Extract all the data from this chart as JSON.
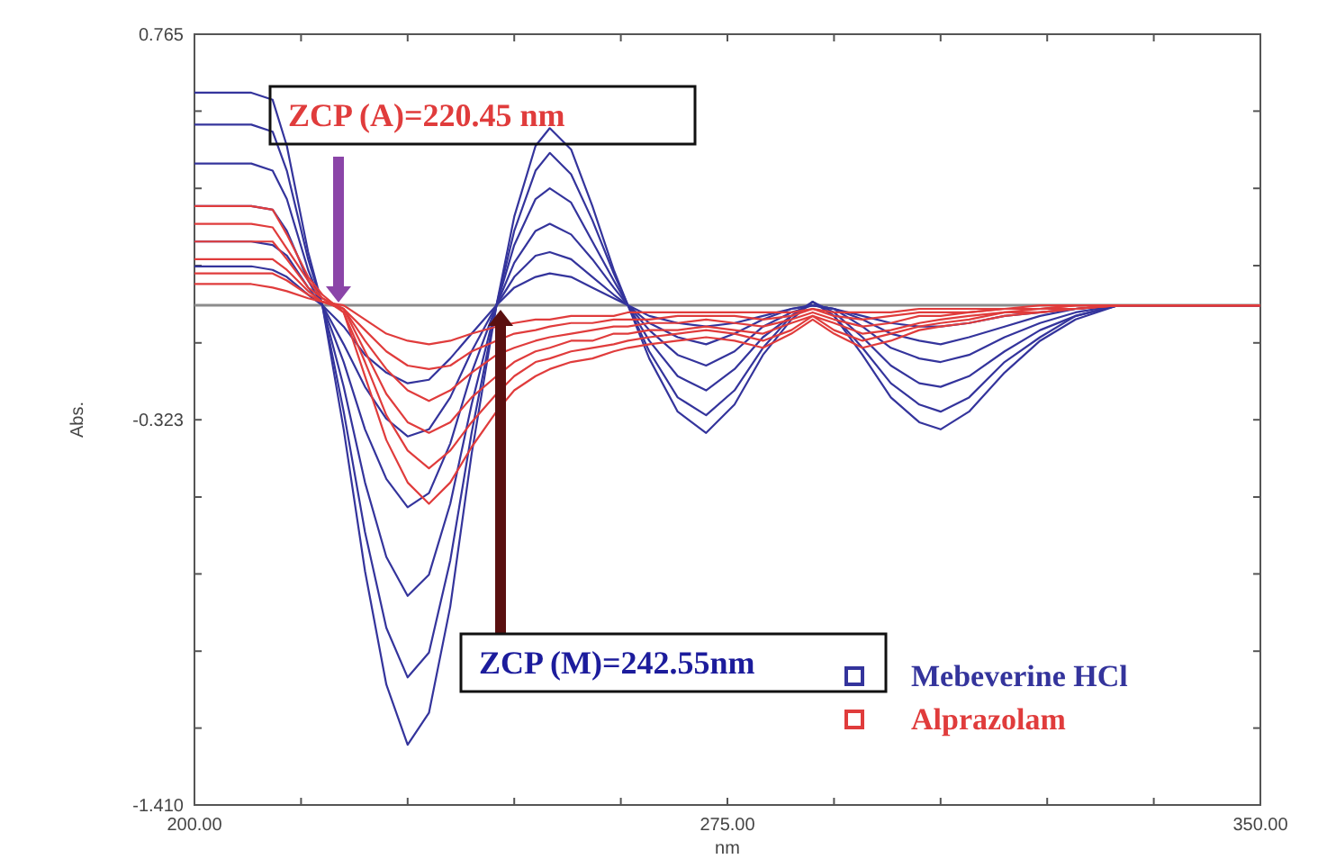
{
  "chart_data": {
    "type": "line",
    "xlabel": "nm",
    "ylabel": "Abs.",
    "x": [
      200,
      208,
      211,
      213,
      216,
      218,
      221,
      224,
      227,
      230,
      233,
      236,
      239,
      242.5,
      245,
      248,
      250,
      253,
      256,
      259,
      261,
      264,
      268,
      272,
      276,
      280,
      284,
      287,
      290,
      294,
      298,
      302,
      305,
      309,
      314,
      319,
      324,
      330,
      350
    ],
    "xlim": [
      200,
      350
    ],
    "xticks": [
      {
        "value": 200,
        "label": "200.00"
      },
      {
        "value": 215,
        "label": null
      },
      {
        "value": 230,
        "label": null
      },
      {
        "value": 245,
        "label": null
      },
      {
        "value": 260,
        "label": null
      },
      {
        "value": 275,
        "label": "275.00"
      },
      {
        "value": 290,
        "label": null
      },
      {
        "value": 305,
        "label": null
      },
      {
        "value": 320,
        "label": null
      },
      {
        "value": 335,
        "label": null
      },
      {
        "value": 350,
        "label": "350.00"
      }
    ],
    "ylim": [
      -1.41,
      0.765
    ],
    "yticks": [
      {
        "value": 0.765,
        "label": "0.765"
      },
      {
        "value": 0.548,
        "label": null
      },
      {
        "value": 0.33,
        "label": null
      },
      {
        "value": 0.112,
        "label": null
      },
      {
        "value": -0.106,
        "label": null
      },
      {
        "value": -0.323,
        "label": "-0.323"
      },
      {
        "value": -0.541,
        "label": null
      },
      {
        "value": -0.758,
        "label": null
      },
      {
        "value": -0.976,
        "label": null
      },
      {
        "value": -1.193,
        "label": null
      },
      {
        "value": -1.41,
        "label": "-1.410"
      }
    ],
    "marker": "none",
    "grid": false,
    "legend": "bottom right",
    "ref_lines": [
      {
        "axis": "y",
        "value": 0,
        "color": "#8c8c8c"
      }
    ],
    "annotations": [
      "ZCP (A)=220.45 nm",
      "ZCP (M)=242.55nm"
    ],
    "series": [
      {
        "name": "Mebeverine HCl",
        "color": "#34349c",
        "values": [
          0.6,
          0.6,
          0.58,
          0.45,
          0.15,
          0,
          -0.35,
          -0.75,
          -1.07,
          -1.24,
          -1.15,
          -0.85,
          -0.42,
          0,
          0.25,
          0.45,
          0.5,
          0.44,
          0.28,
          0.1,
          0,
          -0.15,
          -0.3,
          -0.36,
          -0.28,
          -0.14,
          -0.04,
          0.01,
          -0.03,
          -0.14,
          -0.26,
          -0.33,
          -0.35,
          -0.3,
          -0.19,
          -0.1,
          -0.04,
          0,
          0
        ]
      },
      {
        "color": "#34349c",
        "values": [
          0.51,
          0.51,
          0.49,
          0.38,
          0.13,
          0,
          -0.3,
          -0.64,
          -0.91,
          -1.05,
          -0.98,
          -0.72,
          -0.36,
          0,
          0.21,
          0.38,
          0.43,
          0.37,
          0.24,
          0.09,
          0,
          -0.13,
          -0.26,
          -0.31,
          -0.24,
          -0.12,
          -0.03,
          0.01,
          -0.03,
          -0.12,
          -0.22,
          -0.28,
          -0.3,
          -0.26,
          -0.16,
          -0.09,
          -0.03,
          0,
          0
        ]
      },
      {
        "color": "#34349c",
        "values": [
          0.4,
          0.4,
          0.38,
          0.3,
          0.1,
          0,
          -0.23,
          -0.5,
          -0.71,
          -0.82,
          -0.76,
          -0.56,
          -0.28,
          0,
          0.17,
          0.3,
          0.33,
          0.29,
          0.18,
          0.07,
          0,
          -0.1,
          -0.2,
          -0.24,
          -0.18,
          -0.09,
          -0.03,
          0.01,
          -0.02,
          -0.09,
          -0.17,
          -0.22,
          -0.23,
          -0.2,
          -0.13,
          -0.07,
          -0.03,
          0,
          0
        ]
      },
      {
        "color": "#34349c",
        "values": [
          0.28,
          0.28,
          0.27,
          0.21,
          0.07,
          0,
          -0.16,
          -0.35,
          -0.49,
          -0.57,
          -0.53,
          -0.39,
          -0.19,
          0,
          0.12,
          0.21,
          0.23,
          0.2,
          0.13,
          0.05,
          0,
          -0.07,
          -0.14,
          -0.17,
          -0.13,
          -0.06,
          -0.02,
          0,
          -0.01,
          -0.06,
          -0.12,
          -0.15,
          -0.16,
          -0.14,
          -0.09,
          -0.05,
          -0.02,
          0,
          0
        ]
      },
      {
        "color": "#34349c",
        "values": [
          0.18,
          0.18,
          0.17,
          0.14,
          0.05,
          0,
          -0.11,
          -0.23,
          -0.32,
          -0.37,
          -0.35,
          -0.26,
          -0.13,
          0,
          0.08,
          0.14,
          0.15,
          0.13,
          0.08,
          0.03,
          0,
          -0.05,
          -0.09,
          -0.11,
          -0.08,
          -0.04,
          -0.01,
          0,
          -0.01,
          -0.04,
          -0.08,
          -0.1,
          -0.11,
          -0.09,
          -0.06,
          -0.03,
          -0.01,
          0,
          0
        ]
      },
      {
        "color": "#34349c",
        "values": [
          0.11,
          0.11,
          0.1,
          0.08,
          0.03,
          0,
          -0.06,
          -0.14,
          -0.19,
          -0.22,
          -0.21,
          -0.15,
          -0.08,
          0,
          0.05,
          0.08,
          0.09,
          0.08,
          0.05,
          0.02,
          0,
          -0.03,
          -0.05,
          -0.06,
          -0.05,
          -0.03,
          -0.01,
          0,
          -0.01,
          -0.03,
          -0.05,
          -0.06,
          -0.06,
          -0.05,
          -0.03,
          -0.02,
          -0.01,
          0,
          0
        ]
      },
      {
        "name": "Alprazolam",
        "color": "#e03c3c",
        "values": [
          0.28,
          0.28,
          0.27,
          0.2,
          0.08,
          0.03,
          -0.02,
          -0.2,
          -0.38,
          -0.5,
          -0.56,
          -0.5,
          -0.4,
          -0.3,
          -0.24,
          -0.2,
          -0.18,
          -0.16,
          -0.15,
          -0.13,
          -0.12,
          -0.11,
          -0.1,
          -0.09,
          -0.1,
          -0.12,
          -0.08,
          -0.04,
          -0.08,
          -0.12,
          -0.1,
          -0.07,
          -0.06,
          -0.05,
          -0.03,
          -0.02,
          -0.01,
          0,
          0
        ]
      },
      {
        "color": "#e03c3c",
        "values": [
          0.23,
          0.23,
          0.22,
          0.16,
          0.07,
          0.02,
          -0.02,
          -0.16,
          -0.31,
          -0.41,
          -0.46,
          -0.41,
          -0.33,
          -0.25,
          -0.2,
          -0.16,
          -0.15,
          -0.13,
          -0.12,
          -0.11,
          -0.1,
          -0.09,
          -0.08,
          -0.07,
          -0.08,
          -0.1,
          -0.07,
          -0.03,
          -0.07,
          -0.1,
          -0.08,
          -0.06,
          -0.05,
          -0.04,
          -0.02,
          -0.02,
          -0.01,
          0,
          0
        ]
      },
      {
        "color": "#e03c3c",
        "values": [
          0.18,
          0.18,
          0.18,
          0.13,
          0.05,
          0.02,
          -0.01,
          -0.13,
          -0.25,
          -0.33,
          -0.36,
          -0.33,
          -0.26,
          -0.2,
          -0.16,
          -0.13,
          -0.12,
          -0.1,
          -0.1,
          -0.08,
          -0.08,
          -0.07,
          -0.07,
          -0.06,
          -0.07,
          -0.08,
          -0.05,
          -0.03,
          -0.05,
          -0.08,
          -0.07,
          -0.05,
          -0.04,
          -0.03,
          -0.02,
          -0.01,
          -0.01,
          0,
          0
        ]
      },
      {
        "color": "#e03c3c",
        "values": [
          0.13,
          0.13,
          0.13,
          0.1,
          0.04,
          0.01,
          -0.01,
          -0.1,
          -0.18,
          -0.24,
          -0.27,
          -0.24,
          -0.19,
          -0.14,
          -0.12,
          -0.1,
          -0.09,
          -0.08,
          -0.07,
          -0.06,
          -0.06,
          -0.05,
          -0.05,
          -0.04,
          -0.05,
          -0.06,
          -0.04,
          -0.02,
          -0.04,
          -0.06,
          -0.05,
          -0.03,
          -0.03,
          -0.02,
          -0.01,
          -0.01,
          0,
          0,
          0
        ]
      },
      {
        "color": "#e03c3c",
        "values": [
          0.09,
          0.09,
          0.09,
          0.07,
          0.03,
          0.01,
          -0.01,
          -0.07,
          -0.13,
          -0.17,
          -0.18,
          -0.17,
          -0.13,
          -0.1,
          -0.08,
          -0.07,
          -0.06,
          -0.05,
          -0.05,
          -0.04,
          -0.04,
          -0.04,
          -0.03,
          -0.03,
          -0.03,
          -0.04,
          -0.03,
          -0.01,
          -0.03,
          -0.04,
          -0.03,
          -0.02,
          -0.02,
          -0.02,
          -0.01,
          -0.01,
          0,
          0,
          0
        ]
      },
      {
        "color": "#e03c3c",
        "values": [
          0.06,
          0.06,
          0.05,
          0.04,
          0.02,
          0.01,
          0,
          -0.04,
          -0.08,
          -0.1,
          -0.11,
          -0.1,
          -0.08,
          -0.06,
          -0.05,
          -0.04,
          -0.04,
          -0.03,
          -0.03,
          -0.03,
          -0.02,
          -0.02,
          -0.02,
          -0.02,
          -0.02,
          -0.02,
          -0.02,
          -0.01,
          -0.02,
          -0.02,
          -0.02,
          -0.01,
          -0.01,
          -0.01,
          -0.01,
          0,
          0,
          0,
          0
        ]
      }
    ]
  }
}
